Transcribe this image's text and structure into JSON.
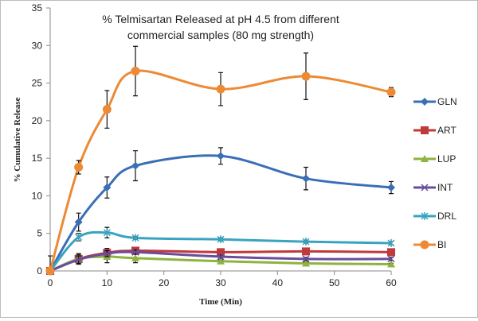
{
  "chart_data": {
    "type": "line",
    "title_line1": "% Telmisartan Released at pH 4.5 from different",
    "title_line2": "commercial samples (80 mg strength)",
    "xlabel": "Time (Min)",
    "ylabel": "% Cumulative Release",
    "xlim": [
      0,
      60
    ],
    "ylim": [
      0,
      35
    ],
    "xticks": [
      0,
      10,
      20,
      30,
      40,
      50,
      60
    ],
    "yticks": [
      0,
      5,
      10,
      15,
      20,
      25,
      30,
      35
    ],
    "grid": false,
    "legend_position": "right",
    "x": [
      0,
      5,
      10,
      15,
      30,
      45,
      60
    ],
    "series": [
      {
        "name": "GLN",
        "color": "#3a6fb5",
        "marker": "diamond",
        "values": [
          0,
          6.5,
          11.1,
          14.0,
          15.3,
          12.3,
          11.1
        ],
        "errors": [
          0,
          1.2,
          1.4,
          2.0,
          1.1,
          1.5,
          0.8
        ]
      },
      {
        "name": "ART",
        "color": "#c0393b",
        "marker": "square",
        "values": [
          0,
          1.6,
          2.4,
          2.7,
          2.5,
          2.6,
          2.5
        ],
        "errors": [
          2.0,
          0.7,
          0.6,
          0.3,
          0.2,
          0.3,
          0.2
        ]
      },
      {
        "name": "LUP",
        "color": "#8db43e",
        "marker": "triangle",
        "values": [
          0,
          1.6,
          1.9,
          1.7,
          1.3,
          1.0,
          0.9
        ],
        "errors": [
          0,
          0.6,
          0.8,
          0.6,
          0.2,
          0.2,
          0.1
        ]
      },
      {
        "name": "INT",
        "color": "#6a4c9c",
        "marker": "x",
        "values": [
          0,
          1.5,
          2.3,
          2.5,
          1.9,
          1.6,
          1.6
        ],
        "errors": [
          0,
          0.5,
          0.4,
          0.3,
          0.2,
          0.2,
          0.2
        ]
      },
      {
        "name": "DRL",
        "color": "#3aa3c0",
        "marker": "star",
        "values": [
          0,
          4.5,
          5.1,
          4.4,
          4.2,
          3.9,
          3.7
        ],
        "errors": [
          0,
          0.5,
          0.7,
          0.2,
          0.2,
          0.2,
          0.2
        ]
      },
      {
        "name": "BI",
        "color": "#ec8a35",
        "marker": "circle",
        "values": [
          0,
          13.8,
          21.5,
          26.6,
          24.2,
          25.9,
          23.8
        ],
        "errors": [
          0,
          0.9,
          2.5,
          3.3,
          2.2,
          3.1,
          0.6
        ]
      }
    ]
  }
}
